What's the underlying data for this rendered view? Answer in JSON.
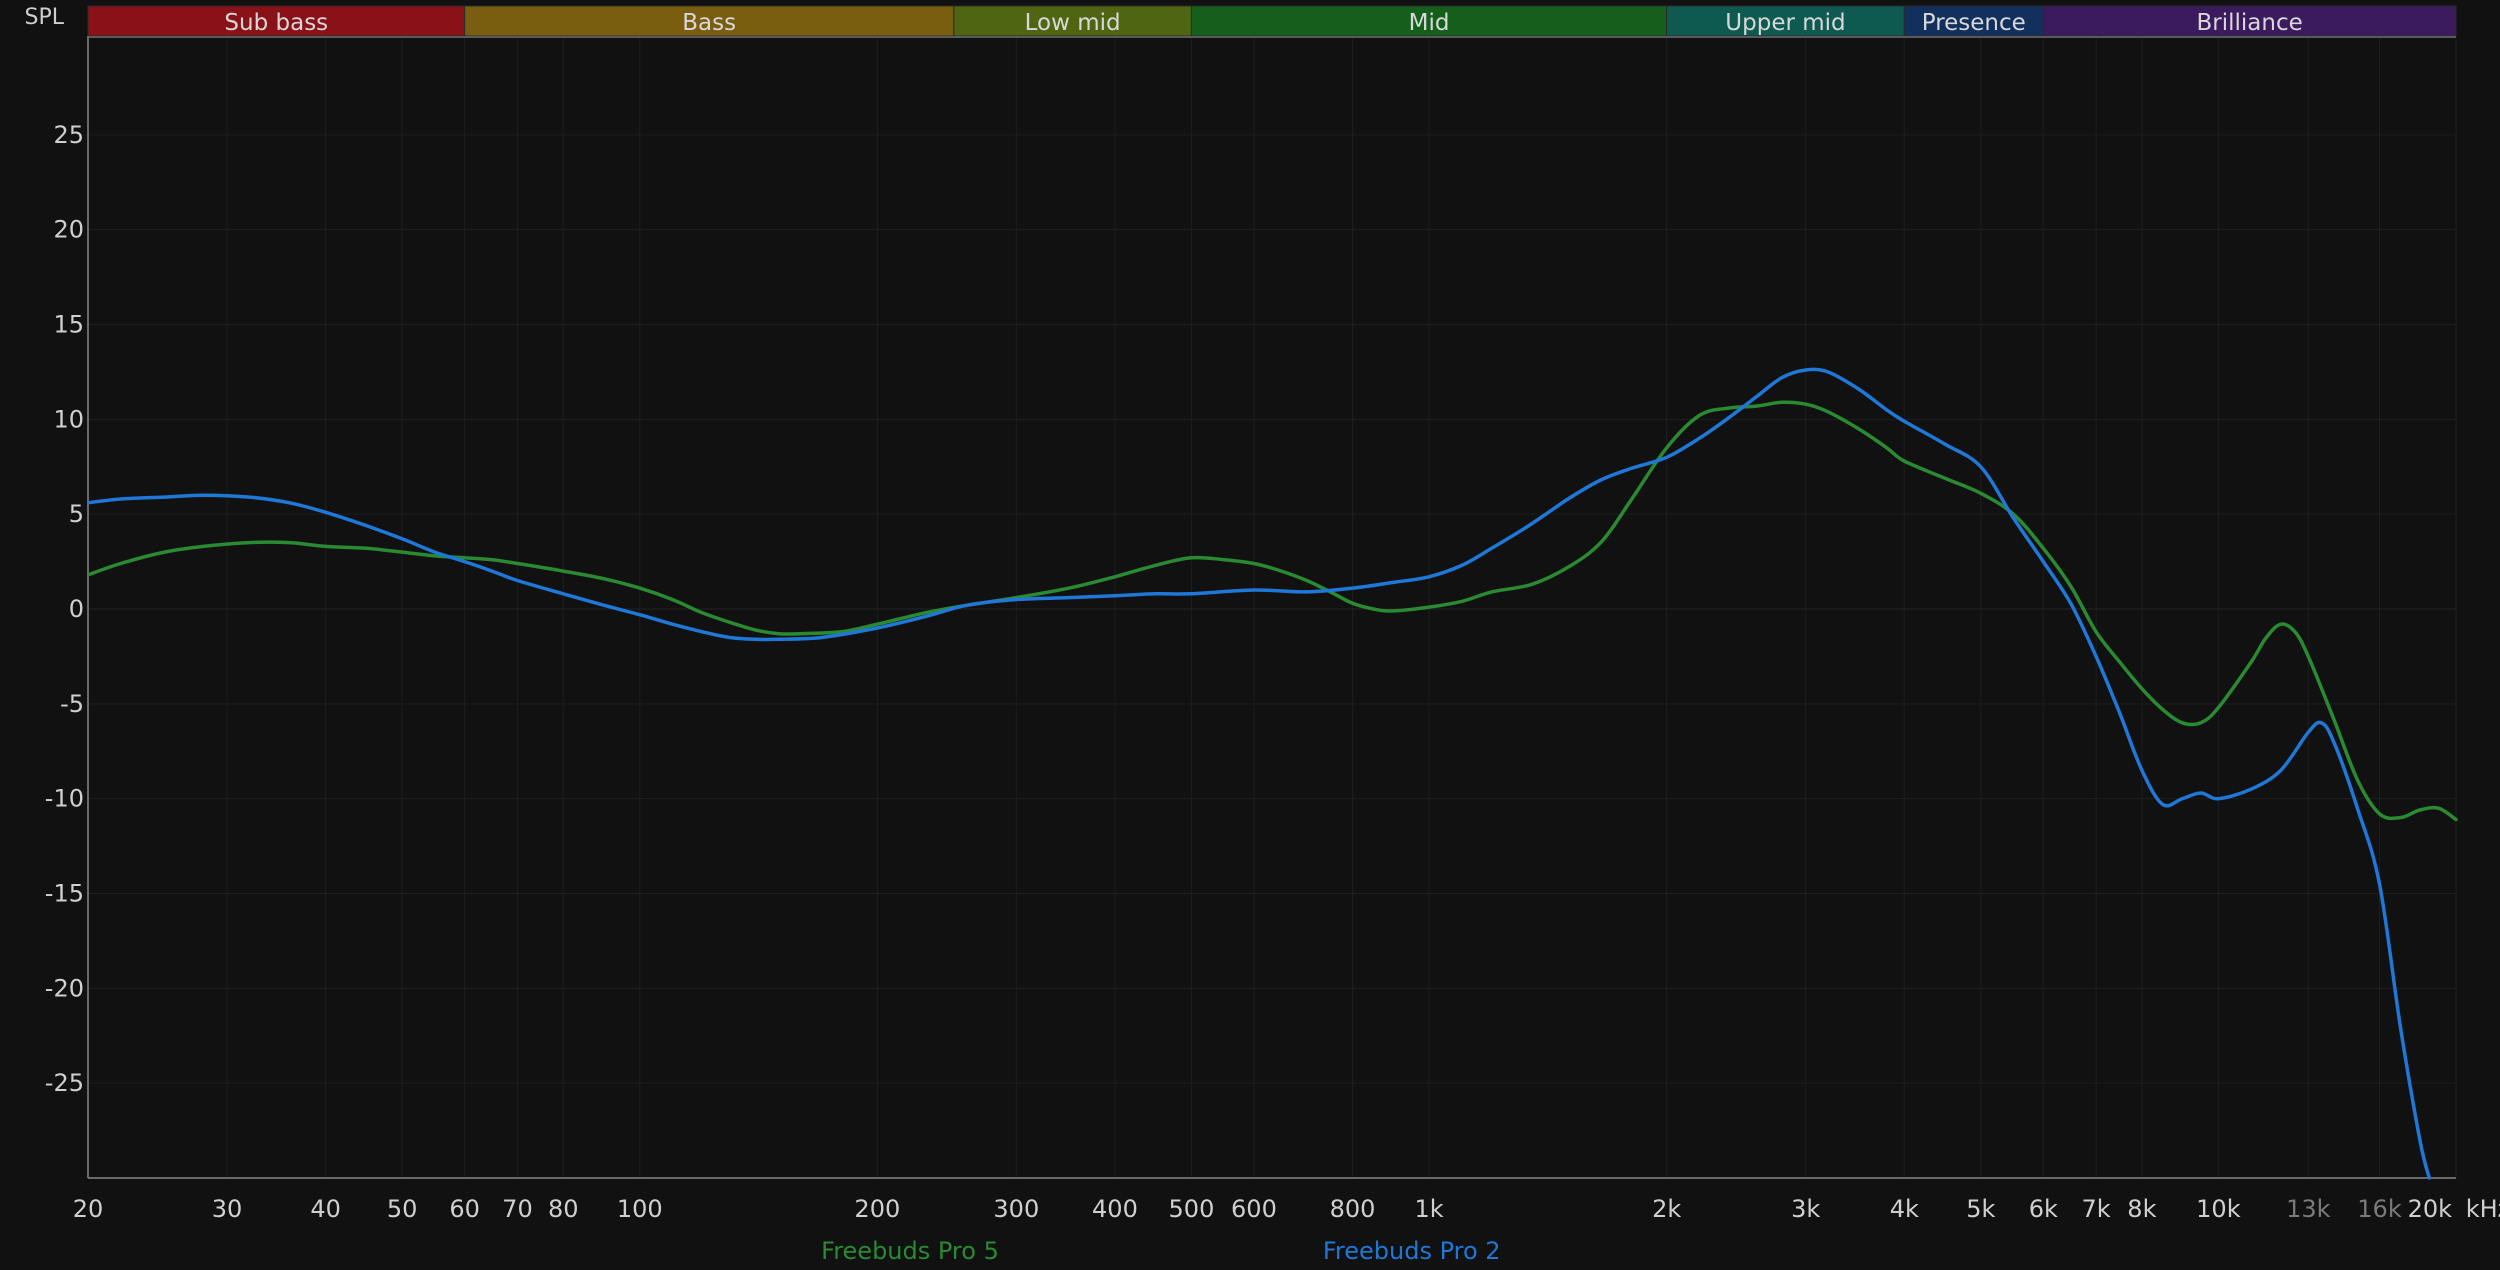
{
  "chart_data": {
    "type": "line",
    "ylabel": "SPL",
    "xunit": "kHz",
    "ylim": [
      -30,
      30
    ],
    "xlim": [
      20,
      20000
    ],
    "xscale": "log",
    "grid": true,
    "legend_placement": "bottom",
    "yticks": [
      25,
      20,
      15,
      10,
      5,
      0,
      -5,
      -10,
      -15,
      -20,
      -25
    ],
    "xticks": [
      {
        "v": 20,
        "label": "20",
        "dim": false
      },
      {
        "v": 30,
        "label": "30",
        "dim": false
      },
      {
        "v": 40,
        "label": "40",
        "dim": false
      },
      {
        "v": 50,
        "label": "50",
        "dim": false
      },
      {
        "v": 60,
        "label": "60",
        "dim": false
      },
      {
        "v": 70,
        "label": "70",
        "dim": false
      },
      {
        "v": 80,
        "label": "80",
        "dim": false
      },
      {
        "v": 100,
        "label": "100",
        "dim": false
      },
      {
        "v": 200,
        "label": "200",
        "dim": false
      },
      {
        "v": 300,
        "label": "300",
        "dim": false
      },
      {
        "v": 400,
        "label": "400",
        "dim": false
      },
      {
        "v": 500,
        "label": "500",
        "dim": false
      },
      {
        "v": 600,
        "label": "600",
        "dim": false
      },
      {
        "v": 800,
        "label": "800",
        "dim": false
      },
      {
        "v": 1000,
        "label": "1k",
        "dim": false
      },
      {
        "v": 2000,
        "label": "2k",
        "dim": false
      },
      {
        "v": 3000,
        "label": "3k",
        "dim": false
      },
      {
        "v": 4000,
        "label": "4k",
        "dim": false
      },
      {
        "v": 5000,
        "label": "5k",
        "dim": false
      },
      {
        "v": 6000,
        "label": "6k",
        "dim": false
      },
      {
        "v": 7000,
        "label": "7k",
        "dim": false
      },
      {
        "v": 8000,
        "label": "8k",
        "dim": false
      },
      {
        "v": 10000,
        "label": "10k",
        "dim": false
      },
      {
        "v": 13000,
        "label": "13k",
        "dim": true
      },
      {
        "v": 16000,
        "label": "16k",
        "dim": true
      },
      {
        "v": 20000,
        "label": "20k",
        "dim": false
      }
    ],
    "bands": [
      {
        "name": "Sub bass",
        "from": 20,
        "to": 60,
        "color": "#8b1118"
      },
      {
        "name": "Bass",
        "from": 60,
        "to": 250,
        "color": "#7a5e10"
      },
      {
        "name": "Low mid",
        "from": 250,
        "to": 500,
        "color": "#4f6512"
      },
      {
        "name": "Mid",
        "from": 500,
        "to": 2000,
        "color": "#155f1d"
      },
      {
        "name": "Upper mid",
        "from": 2000,
        "to": 4000,
        "color": "#0f5a50"
      },
      {
        "name": "Presence",
        "from": 4000,
        "to": 6000,
        "color": "#12305d"
      },
      {
        "name": "Brilliance",
        "from": 6000,
        "to": 20000,
        "color": "#3b1a5e"
      }
    ],
    "series": [
      {
        "name": "Freebuds Pro 5",
        "color": "#2a8a32",
        "points": [
          [
            20,
            1.8
          ],
          [
            22,
            2.4
          ],
          [
            25,
            3.0
          ],
          [
            28,
            3.3
          ],
          [
            32,
            3.5
          ],
          [
            36,
            3.5
          ],
          [
            40,
            3.3
          ],
          [
            45,
            3.2
          ],
          [
            50,
            3.0
          ],
          [
            55,
            2.8
          ],
          [
            60,
            2.7
          ],
          [
            65,
            2.6
          ],
          [
            70,
            2.4
          ],
          [
            80,
            2.0
          ],
          [
            90,
            1.6
          ],
          [
            100,
            1.1
          ],
          [
            110,
            0.5
          ],
          [
            120,
            -0.2
          ],
          [
            130,
            -0.7
          ],
          [
            140,
            -1.1
          ],
          [
            150,
            -1.3
          ],
          [
            160,
            -1.3
          ],
          [
            180,
            -1.2
          ],
          [
            200,
            -0.8
          ],
          [
            230,
            -0.2
          ],
          [
            260,
            0.2
          ],
          [
            300,
            0.6
          ],
          [
            350,
            1.1
          ],
          [
            400,
            1.7
          ],
          [
            450,
            2.3
          ],
          [
            500,
            2.7
          ],
          [
            550,
            2.6
          ],
          [
            600,
            2.4
          ],
          [
            650,
            2.0
          ],
          [
            700,
            1.5
          ],
          [
            750,
            0.9
          ],
          [
            800,
            0.3
          ],
          [
            850,
            0.0
          ],
          [
            900,
            -0.1
          ],
          [
            1000,
            0.1
          ],
          [
            1100,
            0.4
          ],
          [
            1200,
            0.9
          ],
          [
            1350,
            1.3
          ],
          [
            1500,
            2.2
          ],
          [
            1650,
            3.5
          ],
          [
            1800,
            5.7
          ],
          [
            2000,
            8.5
          ],
          [
            2200,
            10.2
          ],
          [
            2400,
            10.6
          ],
          [
            2600,
            10.7
          ],
          [
            2800,
            10.9
          ],
          [
            3000,
            10.8
          ],
          [
            3200,
            10.4
          ],
          [
            3500,
            9.5
          ],
          [
            3800,
            8.5
          ],
          [
            4000,
            7.8
          ],
          [
            4500,
            6.9
          ],
          [
            5000,
            6.1
          ],
          [
            5500,
            5.0
          ],
          [
            6000,
            3.2
          ],
          [
            6500,
            1.2
          ],
          [
            7000,
            -1.2
          ],
          [
            7500,
            -2.8
          ],
          [
            8000,
            -4.2
          ],
          [
            8500,
            -5.3
          ],
          [
            9000,
            -6.0
          ],
          [
            9500,
            -6.0
          ],
          [
            10000,
            -5.2
          ],
          [
            11000,
            -2.8
          ],
          [
            11500,
            -1.5
          ],
          [
            12000,
            -0.8
          ],
          [
            12500,
            -1.2
          ],
          [
            13000,
            -2.5
          ],
          [
            14000,
            -5.8
          ],
          [
            15000,
            -9.0
          ],
          [
            16000,
            -10.8
          ],
          [
            17000,
            -11.0
          ],
          [
            18000,
            -10.6
          ],
          [
            19000,
            -10.5
          ],
          [
            20000,
            -11.1
          ]
        ]
      },
      {
        "name": "Freebuds Pro 2",
        "color": "#1f78d8",
        "points": [
          [
            20,
            5.6
          ],
          [
            22,
            5.8
          ],
          [
            25,
            5.9
          ],
          [
            28,
            6.0
          ],
          [
            32,
            5.9
          ],
          [
            36,
            5.6
          ],
          [
            40,
            5.1
          ],
          [
            45,
            4.4
          ],
          [
            50,
            3.7
          ],
          [
            55,
            3.0
          ],
          [
            60,
            2.5
          ],
          [
            65,
            2.0
          ],
          [
            70,
            1.5
          ],
          [
            80,
            0.8
          ],
          [
            90,
            0.2
          ],
          [
            100,
            -0.3
          ],
          [
            110,
            -0.8
          ],
          [
            120,
            -1.2
          ],
          [
            130,
            -1.5
          ],
          [
            140,
            -1.6
          ],
          [
            150,
            -1.6
          ],
          [
            170,
            -1.5
          ],
          [
            200,
            -1.0
          ],
          [
            230,
            -0.4
          ],
          [
            260,
            0.2
          ],
          [
            300,
            0.5
          ],
          [
            350,
            0.6
          ],
          [
            400,
            0.7
          ],
          [
            450,
            0.8
          ],
          [
            500,
            0.8
          ],
          [
            600,
            1.0
          ],
          [
            700,
            0.9
          ],
          [
            800,
            1.1
          ],
          [
            900,
            1.4
          ],
          [
            1000,
            1.7
          ],
          [
            1100,
            2.3
          ],
          [
            1200,
            3.2
          ],
          [
            1350,
            4.5
          ],
          [
            1500,
            5.8
          ],
          [
            1650,
            6.8
          ],
          [
            1800,
            7.4
          ],
          [
            2000,
            8.0
          ],
          [
            2200,
            9.0
          ],
          [
            2400,
            10.1
          ],
          [
            2600,
            11.2
          ],
          [
            2800,
            12.2
          ],
          [
            3000,
            12.6
          ],
          [
            3200,
            12.5
          ],
          [
            3500,
            11.6
          ],
          [
            3800,
            10.5
          ],
          [
            4000,
            9.9
          ],
          [
            4500,
            8.7
          ],
          [
            5000,
            7.5
          ],
          [
            5500,
            4.8
          ],
          [
            6000,
            2.5
          ],
          [
            6500,
            0.3
          ],
          [
            7000,
            -2.5
          ],
          [
            7500,
            -5.5
          ],
          [
            8000,
            -8.5
          ],
          [
            8500,
            -10.3
          ],
          [
            9000,
            -10.0
          ],
          [
            9500,
            -9.7
          ],
          [
            10000,
            -10.0
          ],
          [
            11000,
            -9.5
          ],
          [
            12000,
            -8.5
          ],
          [
            13000,
            -6.5
          ],
          [
            13500,
            -6.0
          ],
          [
            14000,
            -7.0
          ],
          [
            15000,
            -10.5
          ],
          [
            16000,
            -14.5
          ],
          [
            17000,
            -22.0
          ],
          [
            18000,
            -28.0
          ],
          [
            18500,
            -30.0
          ]
        ]
      }
    ]
  }
}
